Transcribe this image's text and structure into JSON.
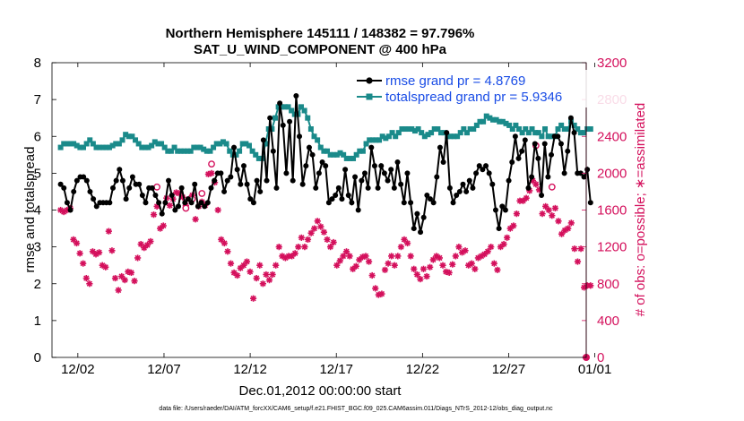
{
  "chart_data": {
    "type": "line",
    "title_line1": "Northern Hemisphere 145111 / 148382 = 97.796%",
    "title_line2": "SAT_U_WIND_COMPONENT @ 400 hPa",
    "xlabel": "Dec.01,2012 00:00:00 start",
    "ylabel_left": "rmse and totalspread",
    "ylabel_right": "# of obs: o=possible; ∗=assimilated",
    "footnote": "data file: /Users/raeder/DAI/ATM_forcXX/CAM6_setup/f.e21.FHIST_BGC.f09_025.CAM6assim.011/Diags_NTrS_2012-12/obs_diag_output.nc",
    "xlim": [
      0.5,
      31.5
    ],
    "ylim_left": [
      0,
      8
    ],
    "ylim_right": [
      0,
      3200
    ],
    "x_ticks": [
      2,
      7,
      12,
      17,
      22,
      27,
      32
    ],
    "x_tick_labels": [
      "12/02",
      "12/07",
      "12/12",
      "12/17",
      "12/22",
      "12/27",
      "01/01"
    ],
    "y_left_ticks": [
      "0",
      "1",
      "2",
      "3",
      "4",
      "5",
      "6",
      "7",
      "8"
    ],
    "y_right_ticks": [
      "0",
      "400",
      "800",
      "1200",
      "1600",
      "2000",
      "2400",
      "2800",
      "3200"
    ],
    "colors": {
      "rmse": "#000000",
      "spread": "#1a8a8a",
      "obs": "#d4105c",
      "legend_text": "#1a4de6"
    },
    "series": [
      {
        "name": "rmse grand pr = 4.8769",
        "axis": "left",
        "values": [
          4.7,
          4.6,
          4.2,
          4.0,
          4.5,
          4.8,
          4.9,
          4.9,
          4.8,
          4.5,
          4.3,
          4.1,
          4.2,
          4.2,
          4.2,
          4.2,
          4.6,
          4.8,
          5.1,
          4.8,
          4.3,
          4.6,
          4.9,
          4.7,
          4.7,
          4.4,
          4.2,
          4.6,
          4.6,
          4.4,
          4.2,
          3.9,
          4.2,
          4.8,
          4.4,
          4.0,
          4.1,
          4.6,
          4.2,
          4.3,
          4.2,
          4.7,
          4.1,
          4.2,
          4.1,
          4.2,
          4.6,
          4.8,
          5.0,
          5.0,
          4.5,
          4.8,
          4.9,
          5.7,
          5.1,
          4.7,
          5.2,
          4.7,
          4.3,
          4.2,
          4.8,
          4.5,
          5.9,
          4.8,
          6.5,
          5.6,
          4.6,
          6.9,
          6.3,
          5.0,
          6.4,
          4.8,
          7.1,
          6.0,
          4.7,
          5.2,
          5.7,
          5.5,
          4.6,
          5.0,
          5.3,
          5.2,
          4.2,
          4.3,
          4.4,
          4.6,
          4.3,
          5.1,
          4.4,
          4.2,
          4.9,
          4.0,
          4.8,
          5.0,
          4.6,
          5.7,
          5.2,
          4.6,
          5.2,
          5.0,
          4.8,
          5.1,
          4.6,
          5.3,
          4.7,
          4.2,
          5.0,
          4.2,
          3.5,
          3.9,
          3.4,
          3.8,
          4.4,
          4.3,
          4.2,
          4.9,
          5.7,
          5.3,
          6.1,
          4.6,
          4.2,
          4.4,
          4.5,
          4.7,
          4.5,
          4.8,
          4.6,
          5.0,
          5.2,
          5.1,
          5.2,
          5.0,
          4.7,
          4.0,
          3.5,
          4.1,
          4.0,
          4.8,
          5.3,
          6.0,
          5.4,
          5.6,
          5.9,
          4.6,
          4.9,
          5.8,
          5.4,
          4.4,
          5.8,
          4.9,
          5.5,
          6.0,
          6.0,
          5.8,
          5.0,
          5.6,
          6.5,
          6.1,
          5.0,
          5.0,
          4.9,
          5.1,
          4.2
        ]
      },
      {
        "name": "totalspread grand pr = 5.9346",
        "axis": "left",
        "values": [
          5.7,
          5.8,
          5.8,
          5.8,
          5.8,
          5.75,
          5.7,
          5.7,
          5.8,
          5.9,
          5.8,
          5.7,
          5.7,
          5.7,
          5.7,
          5.7,
          5.75,
          5.8,
          5.8,
          5.9,
          6.05,
          6.0,
          6.0,
          5.9,
          5.8,
          5.7,
          5.7,
          5.7,
          5.75,
          5.85,
          5.8,
          5.8,
          5.7,
          5.6,
          5.6,
          5.7,
          5.6,
          5.6,
          5.6,
          5.6,
          5.6,
          5.7,
          5.7,
          5.7,
          5.65,
          5.6,
          5.6,
          5.7,
          5.8,
          5.8,
          5.85,
          5.8,
          5.6,
          5.5,
          5.5,
          5.6,
          5.8,
          5.8,
          5.75,
          5.6,
          5.5,
          5.4,
          5.4,
          5.8,
          6.2,
          6.2,
          6.5,
          6.8,
          6.8,
          6.8,
          6.8,
          6.7,
          6.6,
          6.6,
          6.8,
          6.7,
          6.5,
          6.2,
          6.0,
          5.9,
          5.7,
          5.6,
          5.6,
          5.5,
          5.5,
          5.5,
          5.55,
          5.5,
          5.4,
          5.4,
          5.4,
          5.5,
          5.6,
          5.6,
          5.8,
          5.9,
          5.9,
          5.9,
          5.9,
          6.0,
          5.95,
          6.0,
          6.1,
          6.0,
          6.1,
          6.2,
          6.2,
          6.2,
          6.2,
          6.15,
          6.2,
          6.1,
          6.0,
          6.05,
          6.1,
          6.2,
          6.2,
          6.1,
          6.1,
          6.0,
          6.0,
          6.0,
          6.0,
          6.1,
          6.2,
          6.1,
          6.2,
          6.2,
          6.3,
          6.4,
          6.4,
          6.55,
          6.5,
          6.45,
          6.45,
          6.4,
          6.4,
          6.35,
          6.3,
          6.2,
          6.3,
          6.2,
          6.1,
          6.2,
          6.1,
          6.2,
          6.1,
          6.1,
          6.0,
          6.2,
          6.0,
          6.0,
          6.0,
          6.2,
          6.3,
          6.2,
          6.2,
          6.4,
          6.3,
          6.2,
          6.1,
          6.1,
          6.2,
          6.2
        ]
      },
      {
        "name": "observations assimilated",
        "axis": "right",
        "values": [
          1600,
          1580,
          1600,
          1620,
          1280,
          1240,
          1130,
          1020,
          860,
          800,
          1150,
          1120,
          1140,
          1000,
          980,
          1370,
          1160,
          860,
          730,
          880,
          840,
          930,
          920,
          830,
          1080,
          1230,
          1190,
          1220,
          1260,
          1550,
          1640,
          1400,
          1430,
          1730,
          1650,
          1720,
          1790,
          1780,
          1740,
          1650,
          1720,
          1760,
          1500,
          1640,
          1690,
          1650,
          1990,
          2000,
          1900,
          1600,
          1280,
          1240,
          1150,
          1020,
          920,
          890,
          970,
          1000,
          1040,
          930,
          640,
          860,
          1000,
          800,
          900,
          840,
          900,
          1000,
          1200,
          1100,
          1080,
          1100,
          1100,
          1130,
          1200,
          1300,
          1200,
          1280,
          1350,
          1400,
          1480,
          1420,
          1360,
          1280,
          1200,
          1250,
          1000,
          1050,
          1100,
          1150,
          1100,
          960,
          990,
          1060,
          1090,
          1100,
          1040,
          890,
          750,
          680,
          690,
          950,
          1020,
          1100,
          1000,
          1100,
          1200,
          1280,
          1240,
          1100,
          960,
          900,
          850,
          960,
          880,
          980,
          1060,
          1100,
          1080,
          1000,
          930,
          920,
          1010,
          1100,
          1200,
          1140,
          1160,
          1000,
          1020,
          960,
          1080,
          1100,
          1120,
          1150,
          1200,
          1020,
          950,
          1200,
          1230,
          1300,
          1400,
          1430,
          1560,
          1700,
          1700,
          1730,
          1810,
          1920,
          1880,
          1820,
          1560,
          1640,
          1600,
          1540,
          1620,
          1480,
          1340,
          1380,
          1400,
          1460,
          1180,
          1040,
          1180,
          760,
          780,
          780
        ]
      }
    ],
    "possible_highlights": [
      {
        "index": 30,
        "value": 1850
      },
      {
        "index": 39,
        "value": 1620
      },
      {
        "index": 41,
        "value": 1720
      },
      {
        "index": 44,
        "value": 1780
      },
      {
        "index": 47,
        "value": 2100
      },
      {
        "index": 148,
        "value": 2300
      },
      {
        "index": 153,
        "value": 1850
      }
    ]
  }
}
